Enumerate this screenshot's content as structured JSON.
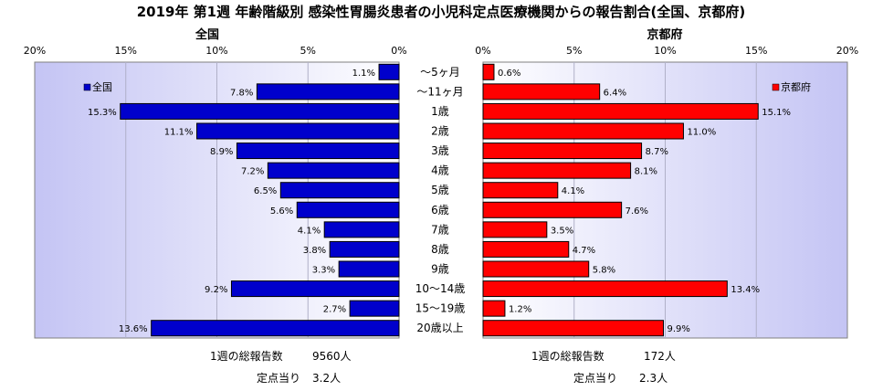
{
  "title": "2019年 第1週 年齢階級別 感染性胃腸炎患者の小児科定点医療機関からの報告割合(全国、京都府)",
  "categories": [
    "～5ヶ月",
    "～11ヶ月",
    "1歳",
    "2歳",
    "3歳",
    "4歳",
    "5歳",
    "6歳",
    "7歳",
    "8歳",
    "9歳",
    "10～14歳",
    "15～19歳",
    "20歳以上"
  ],
  "chart_data": [
    {
      "type": "bar",
      "orientation": "horizontal",
      "direction": "leftward",
      "subtitle": "全国",
      "legend": "全国",
      "legend_position": "top-left",
      "color": "#0000cc",
      "xlim": [
        0,
        20
      ],
      "ticks": [
        "0%",
        "5%",
        "10%",
        "15%",
        "20%"
      ],
      "values": [
        1.1,
        7.8,
        15.3,
        11.1,
        8.9,
        7.2,
        6.5,
        5.6,
        4.1,
        3.8,
        3.3,
        9.2,
        2.7,
        13.6
      ],
      "value_labels": [
        "1.1%",
        "7.8%",
        "15.3%",
        "11.1%",
        "8.9%",
        "7.2%",
        "6.5%",
        "5.6%",
        "4.1%",
        "3.8%",
        "3.3%",
        "9.2%",
        "2.7%",
        "13.6%"
      ],
      "footer": {
        "total_label": "1週の総報告数",
        "total_value": "9560人",
        "per_label": "定点当り",
        "per_value": "3.2人"
      }
    },
    {
      "type": "bar",
      "orientation": "horizontal",
      "direction": "rightward",
      "subtitle": "京都府",
      "legend": "京都府",
      "legend_position": "top-right",
      "color": "#ff0000",
      "xlim": [
        0,
        20
      ],
      "ticks": [
        "0%",
        "5%",
        "10%",
        "15%",
        "20%"
      ],
      "values": [
        0.6,
        6.4,
        15.1,
        11.0,
        8.7,
        8.1,
        4.1,
        7.6,
        3.5,
        4.7,
        5.8,
        13.4,
        1.2,
        9.9
      ],
      "value_labels": [
        "0.6%",
        "6.4%",
        "15.1%",
        "11.0%",
        "8.7%",
        "8.1%",
        "4.1%",
        "7.6%",
        "3.5%",
        "4.7%",
        "5.8%",
        "13.4%",
        "1.2%",
        "9.9%"
      ],
      "footer": {
        "total_label": "1週の総報告数",
        "total_value": "172人",
        "per_label": "定点当り",
        "per_value": "2.3人"
      }
    }
  ]
}
